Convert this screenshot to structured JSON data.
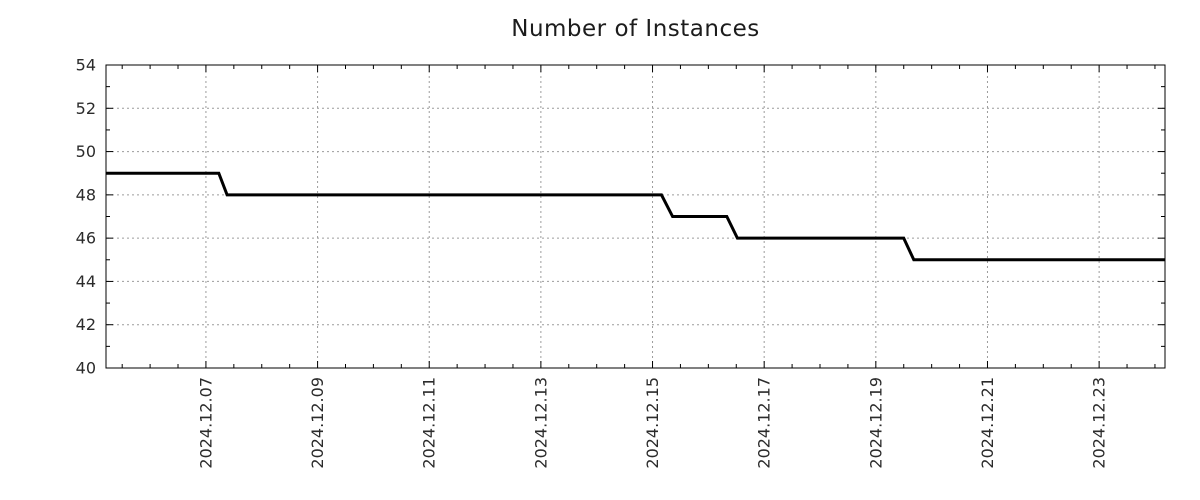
{
  "page": {
    "background_color": "#ffffff"
  },
  "chart_data": {
    "type": "line",
    "title": "Number of Instances",
    "style": "step-line",
    "grid": true,
    "legend": null,
    "colors": {
      "line": "#000000",
      "grid": "#9c9c9c",
      "axis": "#000000",
      "tick_label": "#2b2b2b",
      "title": "#1c1c1c"
    },
    "x_axis": {
      "unit": "date-december-2024-fractional-days",
      "domain_days": [
        5.21,
        24.18
      ],
      "major_tick_days": [
        7,
        9,
        11,
        13,
        15,
        17,
        19,
        21,
        23
      ],
      "major_tick_labels": [
        "2024.12.07",
        "2024.12.09",
        "2024.12.11",
        "2024.12.13",
        "2024.12.15",
        "2024.12.17",
        "2024.12.19",
        "2024.12.21",
        "2024.12.23"
      ],
      "minor_tick_interval_days": 0.5
    },
    "y_axis": {
      "range": [
        40,
        54
      ],
      "major_ticks": [
        40,
        42,
        44,
        46,
        48,
        50,
        52,
        54
      ],
      "major_tick_labels": [
        "40",
        "42",
        "44",
        "46",
        "48",
        "50",
        "52",
        "54"
      ],
      "minor_ticks": [
        41,
        43,
        45,
        47,
        49,
        51,
        53
      ],
      "grid_values": [
        42,
        44,
        46,
        48,
        50,
        52
      ]
    },
    "series": [
      {
        "name": "instances",
        "points_day_value": [
          [
            5.21,
            49
          ],
          [
            7.23,
            49
          ],
          [
            7.38,
            48
          ],
          [
            15.16,
            48
          ],
          [
            15.36,
            47
          ],
          [
            16.33,
            47
          ],
          [
            16.52,
            46
          ],
          [
            19.5,
            46
          ],
          [
            19.68,
            45
          ],
          [
            24.18,
            45
          ]
        ]
      }
    ]
  }
}
